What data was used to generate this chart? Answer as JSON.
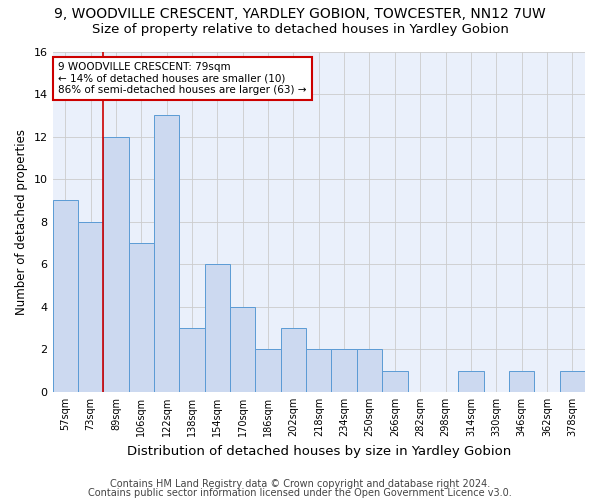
{
  "title": "9, WOODVILLE CRESCENT, YARDLEY GOBION, TOWCESTER, NN12 7UW",
  "subtitle": "Size of property relative to detached houses in Yardley Gobion",
  "xlabel": "Distribution of detached houses by size in Yardley Gobion",
  "ylabel": "Number of detached properties",
  "categories": [
    "57sqm",
    "73sqm",
    "89sqm",
    "106sqm",
    "122sqm",
    "138sqm",
    "154sqm",
    "170sqm",
    "186sqm",
    "202sqm",
    "218sqm",
    "234sqm",
    "250sqm",
    "266sqm",
    "282sqm",
    "298sqm",
    "314sqm",
    "330sqm",
    "346sqm",
    "362sqm",
    "378sqm"
  ],
  "values": [
    9,
    8,
    12,
    7,
    13,
    3,
    6,
    4,
    2,
    3,
    2,
    2,
    2,
    1,
    0,
    0,
    1,
    0,
    1,
    0,
    1
  ],
  "bar_color": "#ccd9f0",
  "bar_edge_color": "#5b9bd5",
  "property_line_x": 1.5,
  "annotation_text": "9 WOODVILLE CRESCENT: 79sqm\n← 14% of detached houses are smaller (10)\n86% of semi-detached houses are larger (63) →",
  "annotation_box_color": "#ffffff",
  "annotation_box_edge": "#cc0000",
  "ylim": [
    0,
    16
  ],
  "yticks": [
    0,
    2,
    4,
    6,
    8,
    10,
    12,
    14,
    16
  ],
  "footer_line1": "Contains HM Land Registry data © Crown copyright and database right 2024.",
  "footer_line2": "Contains public sector information licensed under the Open Government Licence v3.0.",
  "background_color": "#ffffff",
  "grid_color": "#cccccc",
  "title_fontsize": 10,
  "subtitle_fontsize": 9.5,
  "xlabel_fontsize": 9.5,
  "ylabel_fontsize": 8.5,
  "footer_fontsize": 7,
  "annotation_fontsize": 7.5
}
